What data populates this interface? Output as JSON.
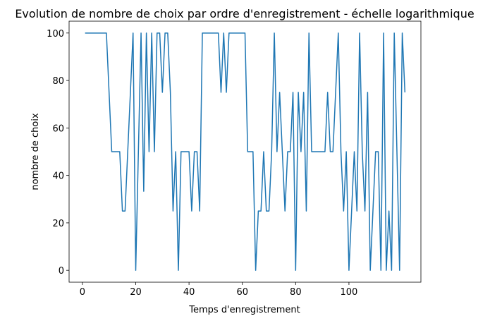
{
  "chart_data": {
    "type": "line",
    "title": "Evolution de nombre de choix par ordre d'enregistrement - échelle logarithmique",
    "x_label": "Temps d'enregistrement",
    "y_label": "nombre de choix",
    "color": "#1f77b4",
    "x": [
      1,
      2,
      3,
      4,
      5,
      6,
      7,
      8,
      9,
      10,
      11,
      12,
      13,
      14,
      15,
      16,
      17,
      18,
      19,
      20,
      21,
      22,
      23,
      24,
      25,
      26,
      27,
      28,
      29,
      30,
      31,
      32,
      33,
      34,
      35,
      36,
      37,
      38,
      39,
      40,
      41,
      42,
      43,
      44,
      45,
      46,
      47,
      48,
      49,
      50,
      51,
      52,
      53,
      54,
      55,
      56,
      57,
      58,
      59,
      60,
      61,
      62,
      63,
      64,
      65,
      66,
      67,
      68,
      69,
      70,
      71,
      72,
      73,
      74,
      75,
      76,
      77,
      78,
      79,
      80,
      81,
      82,
      83,
      84,
      85,
      86,
      87,
      88,
      89,
      90,
      91,
      92,
      93,
      94,
      95,
      96,
      97,
      98,
      99,
      100,
      101,
      102,
      103,
      104,
      105,
      106,
      107,
      108,
      109,
      110,
      111,
      112,
      113,
      114,
      115,
      116,
      117,
      118,
      119,
      120,
      121
    ],
    "values": [
      100,
      100,
      100,
      100,
      100,
      100,
      100,
      100,
      100,
      75,
      50,
      50,
      50,
      50,
      25,
      25,
      50,
      75,
      100,
      0,
      50,
      100,
      33.33,
      100,
      50,
      100,
      50,
      100,
      100,
      75,
      100,
      100,
      75,
      25,
      50,
      0,
      50,
      50,
      50,
      50,
      25,
      50,
      50,
      25,
      100,
      100,
      100,
      100,
      100,
      100,
      100,
      75,
      100,
      75,
      100,
      100,
      100,
      100,
      100,
      100,
      100,
      50,
      50,
      50,
      0,
      25,
      25,
      50,
      25,
      25,
      50,
      100,
      50,
      75,
      50,
      25,
      50,
      50,
      75,
      0,
      75,
      50,
      75,
      25,
      100,
      50,
      50,
      50,
      50,
      50,
      50,
      75,
      50,
      50,
      75,
      100,
      50,
      25,
      50,
      0,
      25,
      50,
      25,
      100,
      50,
      25,
      75,
      0,
      25,
      50,
      50,
      0,
      100,
      0,
      25,
      0,
      100,
      50,
      0,
      100,
      75
    ],
    "xlim": [
      -5,
      127
    ],
    "ylim": [
      -5,
      105
    ],
    "xticks": [
      0,
      20,
      40,
      60,
      80,
      100
    ],
    "yticks": [
      0,
      20,
      40,
      60,
      80,
      100
    ],
    "grid": false
  }
}
